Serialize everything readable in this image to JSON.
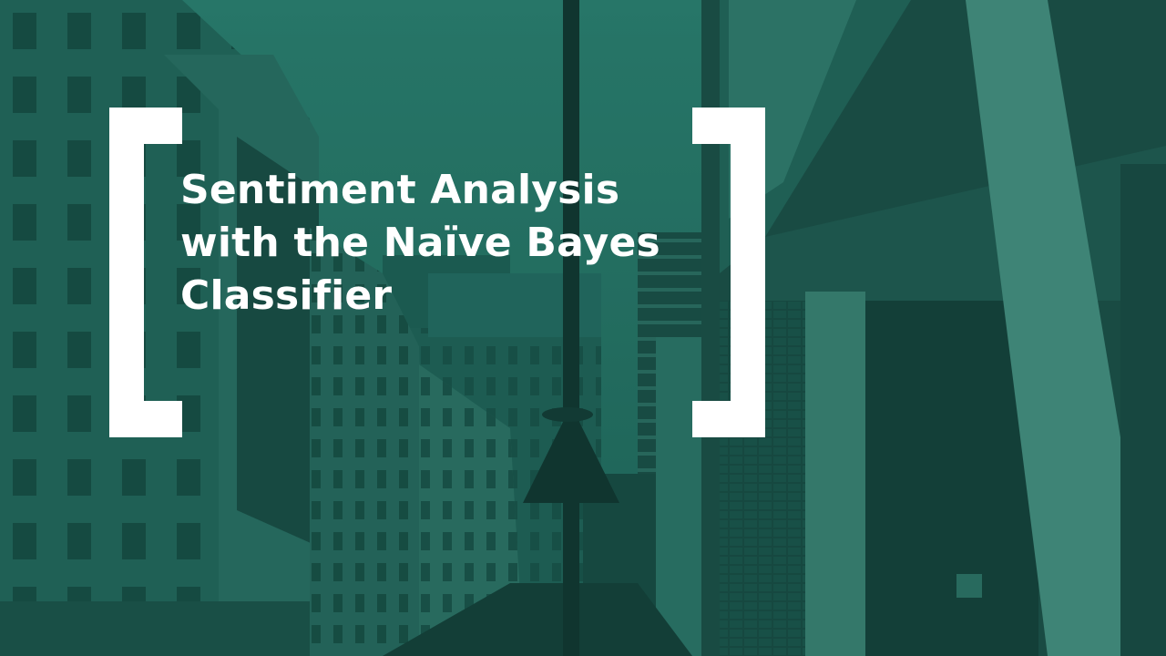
{
  "slide": {
    "title_lines": [
      "Sentiment Analysis",
      "with the Naïve Bayes",
      "Classifier"
    ]
  },
  "colors": {
    "overlay": "#1f6b5e",
    "bracket": "#ffffff",
    "text": "#ffffff"
  }
}
